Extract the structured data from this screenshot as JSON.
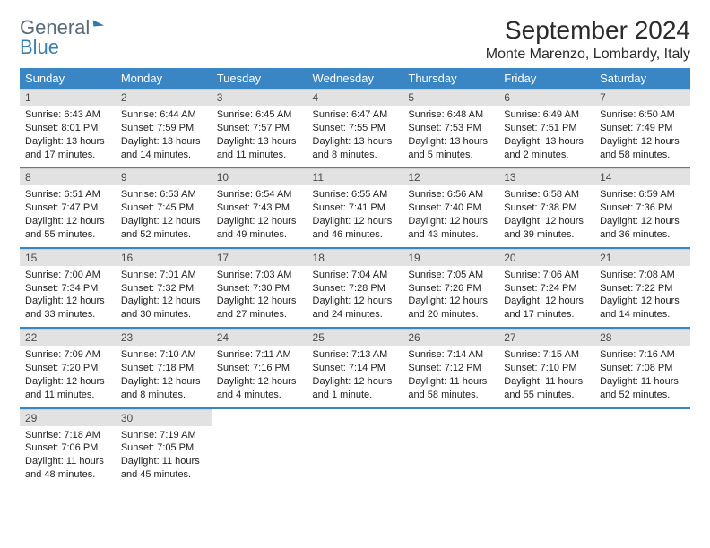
{
  "logo": {
    "part1": "General",
    "part2": "Blue"
  },
  "header": {
    "title": "September 2024",
    "location": "Monte Marenzo, Lombardy, Italy"
  },
  "colors": {
    "header_bg": "#3a85c4",
    "header_fg": "#ffffff",
    "daynum_bg": "#e2e2e2",
    "body_bg": "#ffffff",
    "text": "#222222",
    "week_sep": "#3a85c4"
  },
  "weekdays": [
    "Sunday",
    "Monday",
    "Tuesday",
    "Wednesday",
    "Thursday",
    "Friday",
    "Saturday"
  ],
  "weeks": [
    [
      {
        "n": "1",
        "sr": "Sunrise: 6:43 AM",
        "ss": "Sunset: 8:01 PM",
        "dl1": "Daylight: 13 hours",
        "dl2": "and 17 minutes."
      },
      {
        "n": "2",
        "sr": "Sunrise: 6:44 AM",
        "ss": "Sunset: 7:59 PM",
        "dl1": "Daylight: 13 hours",
        "dl2": "and 14 minutes."
      },
      {
        "n": "3",
        "sr": "Sunrise: 6:45 AM",
        "ss": "Sunset: 7:57 PM",
        "dl1": "Daylight: 13 hours",
        "dl2": "and 11 minutes."
      },
      {
        "n": "4",
        "sr": "Sunrise: 6:47 AM",
        "ss": "Sunset: 7:55 PM",
        "dl1": "Daylight: 13 hours",
        "dl2": "and 8 minutes."
      },
      {
        "n": "5",
        "sr": "Sunrise: 6:48 AM",
        "ss": "Sunset: 7:53 PM",
        "dl1": "Daylight: 13 hours",
        "dl2": "and 5 minutes."
      },
      {
        "n": "6",
        "sr": "Sunrise: 6:49 AM",
        "ss": "Sunset: 7:51 PM",
        "dl1": "Daylight: 13 hours",
        "dl2": "and 2 minutes."
      },
      {
        "n": "7",
        "sr": "Sunrise: 6:50 AM",
        "ss": "Sunset: 7:49 PM",
        "dl1": "Daylight: 12 hours",
        "dl2": "and 58 minutes."
      }
    ],
    [
      {
        "n": "8",
        "sr": "Sunrise: 6:51 AM",
        "ss": "Sunset: 7:47 PM",
        "dl1": "Daylight: 12 hours",
        "dl2": "and 55 minutes."
      },
      {
        "n": "9",
        "sr": "Sunrise: 6:53 AM",
        "ss": "Sunset: 7:45 PM",
        "dl1": "Daylight: 12 hours",
        "dl2": "and 52 minutes."
      },
      {
        "n": "10",
        "sr": "Sunrise: 6:54 AM",
        "ss": "Sunset: 7:43 PM",
        "dl1": "Daylight: 12 hours",
        "dl2": "and 49 minutes."
      },
      {
        "n": "11",
        "sr": "Sunrise: 6:55 AM",
        "ss": "Sunset: 7:41 PM",
        "dl1": "Daylight: 12 hours",
        "dl2": "and 46 minutes."
      },
      {
        "n": "12",
        "sr": "Sunrise: 6:56 AM",
        "ss": "Sunset: 7:40 PM",
        "dl1": "Daylight: 12 hours",
        "dl2": "and 43 minutes."
      },
      {
        "n": "13",
        "sr": "Sunrise: 6:58 AM",
        "ss": "Sunset: 7:38 PM",
        "dl1": "Daylight: 12 hours",
        "dl2": "and 39 minutes."
      },
      {
        "n": "14",
        "sr": "Sunrise: 6:59 AM",
        "ss": "Sunset: 7:36 PM",
        "dl1": "Daylight: 12 hours",
        "dl2": "and 36 minutes."
      }
    ],
    [
      {
        "n": "15",
        "sr": "Sunrise: 7:00 AM",
        "ss": "Sunset: 7:34 PM",
        "dl1": "Daylight: 12 hours",
        "dl2": "and 33 minutes."
      },
      {
        "n": "16",
        "sr": "Sunrise: 7:01 AM",
        "ss": "Sunset: 7:32 PM",
        "dl1": "Daylight: 12 hours",
        "dl2": "and 30 minutes."
      },
      {
        "n": "17",
        "sr": "Sunrise: 7:03 AM",
        "ss": "Sunset: 7:30 PM",
        "dl1": "Daylight: 12 hours",
        "dl2": "and 27 minutes."
      },
      {
        "n": "18",
        "sr": "Sunrise: 7:04 AM",
        "ss": "Sunset: 7:28 PM",
        "dl1": "Daylight: 12 hours",
        "dl2": "and 24 minutes."
      },
      {
        "n": "19",
        "sr": "Sunrise: 7:05 AM",
        "ss": "Sunset: 7:26 PM",
        "dl1": "Daylight: 12 hours",
        "dl2": "and 20 minutes."
      },
      {
        "n": "20",
        "sr": "Sunrise: 7:06 AM",
        "ss": "Sunset: 7:24 PM",
        "dl1": "Daylight: 12 hours",
        "dl2": "and 17 minutes."
      },
      {
        "n": "21",
        "sr": "Sunrise: 7:08 AM",
        "ss": "Sunset: 7:22 PM",
        "dl1": "Daylight: 12 hours",
        "dl2": "and 14 minutes."
      }
    ],
    [
      {
        "n": "22",
        "sr": "Sunrise: 7:09 AM",
        "ss": "Sunset: 7:20 PM",
        "dl1": "Daylight: 12 hours",
        "dl2": "and 11 minutes."
      },
      {
        "n": "23",
        "sr": "Sunrise: 7:10 AM",
        "ss": "Sunset: 7:18 PM",
        "dl1": "Daylight: 12 hours",
        "dl2": "and 8 minutes."
      },
      {
        "n": "24",
        "sr": "Sunrise: 7:11 AM",
        "ss": "Sunset: 7:16 PM",
        "dl1": "Daylight: 12 hours",
        "dl2": "and 4 minutes."
      },
      {
        "n": "25",
        "sr": "Sunrise: 7:13 AM",
        "ss": "Sunset: 7:14 PM",
        "dl1": "Daylight: 12 hours",
        "dl2": "and 1 minute."
      },
      {
        "n": "26",
        "sr": "Sunrise: 7:14 AM",
        "ss": "Sunset: 7:12 PM",
        "dl1": "Daylight: 11 hours",
        "dl2": "and 58 minutes."
      },
      {
        "n": "27",
        "sr": "Sunrise: 7:15 AM",
        "ss": "Sunset: 7:10 PM",
        "dl1": "Daylight: 11 hours",
        "dl2": "and 55 minutes."
      },
      {
        "n": "28",
        "sr": "Sunrise: 7:16 AM",
        "ss": "Sunset: 7:08 PM",
        "dl1": "Daylight: 11 hours",
        "dl2": "and 52 minutes."
      }
    ],
    [
      {
        "n": "29",
        "sr": "Sunrise: 7:18 AM",
        "ss": "Sunset: 7:06 PM",
        "dl1": "Daylight: 11 hours",
        "dl2": "and 48 minutes."
      },
      {
        "n": "30",
        "sr": "Sunrise: 7:19 AM",
        "ss": "Sunset: 7:05 PM",
        "dl1": "Daylight: 11 hours",
        "dl2": "and 45 minutes."
      },
      {
        "empty": true
      },
      {
        "empty": true
      },
      {
        "empty": true
      },
      {
        "empty": true
      },
      {
        "empty": true
      }
    ]
  ]
}
